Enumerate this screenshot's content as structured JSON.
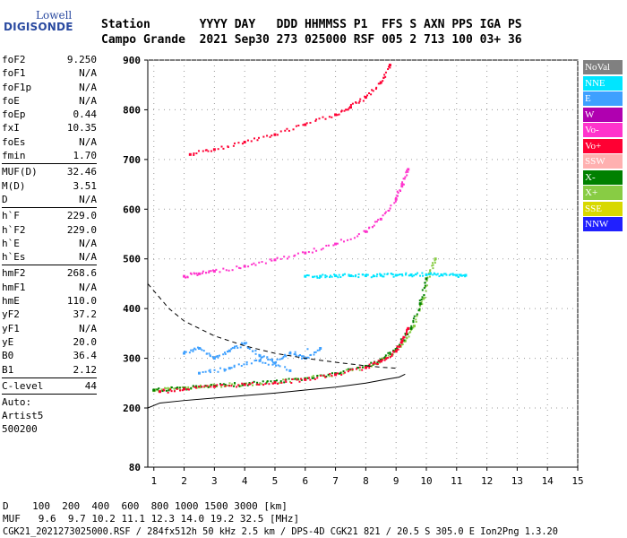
{
  "logo": {
    "line1": "Lowell",
    "line2": "DIGISONDE"
  },
  "header": {
    "line1": "Station       YYYY DAY   DDD HHMMSS P1  FFS S AXN PPS IGA PS",
    "line2": "Campo Grande  2021 Sep30 273 025000 RSF 005 2 713 100 03+ 36"
  },
  "params_group1": [
    {
      "k": "foF2",
      "v": "9.250"
    },
    {
      "k": "foF1",
      "v": "N/A"
    },
    {
      "k": "foF1p",
      "v": "N/A"
    },
    {
      "k": "foE",
      "v": "N/A"
    },
    {
      "k": "foEp",
      "v": "0.44"
    },
    {
      "k": "fxI",
      "v": "10.35"
    },
    {
      "k": "foEs",
      "v": "N/A"
    },
    {
      "k": "fmin",
      "v": "1.70"
    }
  ],
  "params_group2": [
    {
      "k": "MUF(D)",
      "v": "32.46"
    },
    {
      "k": "M(D)",
      "v": "3.51"
    },
    {
      "k": "D",
      "v": "N/A"
    }
  ],
  "params_group3": [
    {
      "k": "h`F",
      "v": "229.0"
    },
    {
      "k": "h`F2",
      "v": "229.0"
    },
    {
      "k": "h`E",
      "v": "N/A"
    },
    {
      "k": "h`Es",
      "v": "N/A"
    }
  ],
  "params_group4": [
    {
      "k": "hmF2",
      "v": "268.6"
    },
    {
      "k": "hmF1",
      "v": "N/A"
    },
    {
      "k": "hmE",
      "v": "110.0"
    },
    {
      "k": "yF2",
      "v": "37.2"
    },
    {
      "k": "yF1",
      "v": "N/A"
    },
    {
      "k": "yE",
      "v": "20.0"
    },
    {
      "k": "B0",
      "v": "36.4"
    },
    {
      "k": "B1",
      "v": "2.12"
    }
  ],
  "clevel": {
    "k": "C-level",
    "v": "44"
  },
  "auto": {
    "line1": "Auto:",
    "line2": "Artist5",
    "line3": "500200"
  },
  "legend": [
    {
      "label": "NoVal",
      "color": "#808080"
    },
    {
      "label": "NNE",
      "color": "#00e5ff"
    },
    {
      "label": "E",
      "color": "#3ea0ff"
    },
    {
      "label": "W",
      "color": "#b000b0"
    },
    {
      "label": "Vo-",
      "color": "#ff33cc"
    },
    {
      "label": "Vo+",
      "color": "#ff0033"
    },
    {
      "label": "SSW",
      "color": "#ffb0b0"
    },
    {
      "label": "X-",
      "color": "#008000"
    },
    {
      "label": "X+",
      "color": "#88cc44"
    },
    {
      "label": "SSE",
      "color": "#d8d800"
    },
    {
      "label": "NNW",
      "color": "#2020ff"
    }
  ],
  "footer": {
    "d_line": "D    100  200  400  600  800 1000 1500 3000 [km]",
    "muf_line": "MUF   9.6  9.7 10.2 11.1 12.3 14.0 19.2 32.5 [MHz]",
    "file_line": "CGK21_2021273025000.RSF / 284fx512h 50 kHz 2.5 km / DPS-4D CGK21 821 / 20.5 S 305.0 E Ion2Png 1.3.20"
  },
  "chart_data": {
    "type": "scatter",
    "xlim": [
      0.8,
      15
    ],
    "ylim": [
      80,
      900
    ],
    "xticks": [
      1,
      2,
      3,
      4,
      5,
      6,
      7,
      8,
      9,
      10,
      11,
      12,
      13,
      14,
      15
    ],
    "yticks": [
      80,
      200,
      300,
      400,
      500,
      600,
      700,
      800,
      900
    ],
    "series": [
      {
        "name": "X+",
        "color": "#88cc44",
        "x": [
          1.0,
          1.5,
          2.0,
          2.5,
          3.0,
          4.0,
          5.0,
          6.0,
          7.0,
          8.0,
          8.5,
          9.0,
          9.3,
          9.6,
          9.9,
          10.1,
          10.3
        ],
        "y": [
          235,
          238,
          240,
          242,
          245,
          248,
          252,
          258,
          268,
          282,
          295,
          315,
          335,
          365,
          420,
          470,
          500
        ]
      },
      {
        "name": "X-",
        "color": "#008000",
        "x": [
          1.0,
          2.0,
          3.0,
          4.0,
          5.0,
          6.0,
          7.0,
          8.0,
          8.5,
          9.0,
          9.5,
          9.8,
          10.0
        ],
        "y": [
          236,
          240,
          244,
          248,
          253,
          259,
          269,
          284,
          297,
          318,
          360,
          410,
          460
        ]
      },
      {
        "name": "Vo+",
        "color": "#ff0033",
        "x": [
          1.2,
          2.0,
          3.0,
          4.0,
          5.0,
          6.0,
          7.0,
          8.0,
          8.5,
          9.0,
          9.2,
          9.4
        ],
        "y": [
          233,
          238,
          243,
          247,
          251,
          257,
          267,
          281,
          294,
          314,
          335,
          360
        ]
      },
      {
        "name": "Vo-",
        "color": "#ff33cc",
        "x": [
          2.0,
          2.5,
          3.0,
          4.0,
          5.0,
          6.0,
          7.0,
          8.0,
          8.5,
          9.0,
          9.2,
          9.4
        ],
        "y": [
          465,
          470,
          475,
          485,
          498,
          512,
          530,
          555,
          580,
          620,
          650,
          680
        ]
      },
      {
        "name": "Vo+",
        "color": "#ff0033",
        "x": [
          2.2,
          3.0,
          4.0,
          5.0,
          6.0,
          7.0,
          7.5,
          8.0,
          8.5,
          8.8
        ],
        "y": [
          710,
          720,
          735,
          750,
          770,
          790,
          805,
          825,
          855,
          890
        ]
      },
      {
        "name": "NNE",
        "color": "#00e5ff",
        "x": [
          6.0,
          6.5,
          7.0,
          7.5,
          8.0,
          8.5,
          9.0,
          9.5,
          10.0,
          10.5,
          11.0,
          11.3
        ],
        "y": [
          465,
          465,
          466,
          466,
          466,
          467,
          467,
          468,
          468,
          468,
          467,
          467
        ]
      },
      {
        "name": "E",
        "color": "#3ea0ff",
        "x": [
          2.0,
          2.5,
          3.0,
          3.5,
          4.0,
          4.5,
          5.0,
          5.5,
          6.0,
          6.5,
          2.5,
          3.5,
          4.5,
          5.5
        ],
        "y": [
          310,
          320,
          300,
          315,
          330,
          305,
          290,
          310,
          300,
          320,
          270,
          280,
          295,
          275
        ]
      }
    ],
    "lines": [
      {
        "name": "dashed",
        "style": "dashed",
        "x": [
          0.8,
          1.5,
          2.0,
          3.0,
          4.0,
          5.0,
          6.0,
          7.0,
          8.0,
          8.5,
          9.0
        ],
        "y": [
          450,
          400,
          375,
          345,
          325,
          310,
          300,
          292,
          285,
          282,
          280
        ]
      },
      {
        "name": "solid",
        "style": "solid",
        "x": [
          0.8,
          1.2,
          2.0,
          3.0,
          4.0,
          5.0,
          6.0,
          7.0,
          8.0,
          8.7,
          9.1,
          9.3
        ],
        "y": [
          200,
          210,
          215,
          220,
          225,
          230,
          236,
          242,
          250,
          258,
          262,
          268
        ]
      }
    ]
  }
}
